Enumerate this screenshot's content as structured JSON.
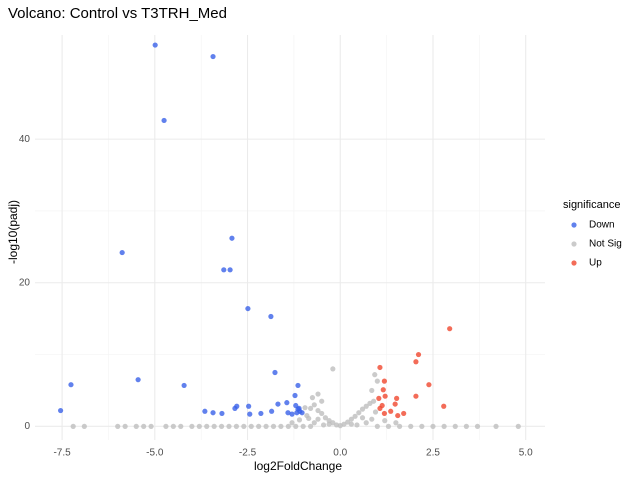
{
  "chart_data": {
    "type": "scatter",
    "title": "Volcano: Control vs T3TRH_Med",
    "x_label": "log2FoldChange",
    "y_label": "-log10(padj)",
    "legend_title": "significance",
    "legend_position": "right",
    "grid": true,
    "xlim": [
      -8.23,
      5.52
    ],
    "ylim": [
      -1.9,
      54.5
    ],
    "xticks": [
      -7.5,
      {
        "value": -5,
        "label": "-5.0"
      },
      -2.5,
      {
        "value": 0,
        "label": "0.0"
      },
      2.5,
      {
        "value": 5,
        "label": "5.0"
      }
    ],
    "yticks": [
      0,
      20,
      40
    ],
    "series": [
      {
        "name": "Down",
        "color": "#3a62e8",
        "x": [
          -4.99,
          -3.43,
          -4.75,
          -5.88,
          -2.92,
          -3.14,
          -2.97,
          -2.49,
          -1.87,
          -1.76,
          -7.26,
          -5.45,
          -4.21,
          -7.54,
          -3.65,
          -3.43,
          -3.19,
          -2.84,
          -2.79,
          -2.47,
          -2.44,
          -2.14,
          -1.85,
          -1.68,
          -1.44,
          -1.14,
          -1.22,
          -1.14,
          -1.17,
          -1.09,
          -1.03,
          -1.2,
          -1.11,
          -1.41,
          -1.3
        ],
        "values": [
          53.1,
          51.5,
          42.6,
          24.2,
          26.2,
          21.8,
          21.8,
          16.4,
          15.3,
          7.5,
          5.8,
          6.5,
          5.7,
          2.2,
          2.1,
          1.9,
          1.8,
          2.5,
          2.8,
          2.8,
          1.7,
          1.8,
          2.1,
          3.1,
          3.3,
          5.7,
          4.3,
          2.4,
          1.9,
          2.1,
          1.9,
          2.9,
          2.5,
          1.9,
          1.7
        ]
      },
      {
        "name": "Not Sig",
        "color": "#bebebe",
        "x": [
          -7.2,
          -6.9,
          -6.0,
          -5.8,
          -5.5,
          -5.3,
          -5.1,
          -4.7,
          -4.5,
          -4.3,
          -4.0,
          -3.8,
          -3.6,
          -3.4,
          -3.2,
          -3.0,
          -2.8,
          -2.6,
          -2.4,
          -2.2,
          -2.0,
          -1.8,
          -1.6,
          -1.4,
          -1.2,
          -1.0,
          -0.8,
          1.0,
          1.3,
          1.6,
          1.9,
          2.2,
          2.5,
          2.8,
          3.1,
          3.4,
          3.7,
          4.2,
          4.8,
          -0.9,
          -0.8,
          -0.7,
          -0.6,
          -0.5,
          -0.4,
          -0.3,
          -0.2,
          -0.1,
          0,
          0.1,
          0.2,
          0.3,
          0.4,
          0.5,
          0.6,
          0.7,
          0.8,
          0.9,
          0.95,
          -0.95,
          -0.75,
          -0.6,
          -0.2,
          -0.5,
          0.85,
          0.93,
          1.0,
          0.6,
          -0.6,
          0.3,
          -0.3,
          0.7,
          -0.7,
          1.2,
          1.5,
          -1.1,
          -1.3,
          0.45,
          -0.45,
          0.85,
          -0.85
        ],
        "values": [
          0,
          0,
          0,
          0,
          0,
          0,
          0,
          0,
          0,
          0,
          0,
          0,
          0,
          0,
          0,
          0,
          0,
          0,
          0,
          0,
          0,
          0,
          0,
          0,
          0,
          0,
          0,
          0,
          0,
          0,
          0,
          0,
          0,
          0,
          0,
          0,
          0,
          0,
          0,
          1.5,
          2.5,
          3.0,
          2.2,
          1.8,
          1.2,
          0.8,
          0.5,
          0.2,
          0.1,
          0.3,
          0.6,
          1.0,
          1.4,
          1.9,
          2.4,
          2.8,
          3.2,
          3.5,
          2.0,
          2.6,
          4.0,
          4.5,
          8.0,
          3.5,
          5.0,
          7.2,
          6.3,
          1.2,
          1.0,
          0.3,
          0.3,
          0.5,
          0.5,
          0.8,
          0.5,
          0.9,
          0.5,
          0.2,
          0.2,
          1.0,
          1.1
        ]
      },
      {
        "name": "Up",
        "color": "#f0472e",
        "x": [
          2.95,
          2.11,
          2.04,
          1.07,
          2.39,
          1.19,
          1.16,
          1.21,
          1.52,
          2.04,
          1.04,
          1.48,
          1.13,
          1.36,
          2.79,
          1.07,
          1.71,
          1.19,
          1.55
        ],
        "values": [
          13.6,
          10.0,
          9.0,
          8.2,
          5.8,
          6.3,
          5.1,
          4.2,
          3.9,
          4.2,
          3.9,
          3.1,
          2.9,
          2.1,
          2.8,
          2.5,
          1.8,
          1.8,
          1.5
        ]
      }
    ]
  }
}
